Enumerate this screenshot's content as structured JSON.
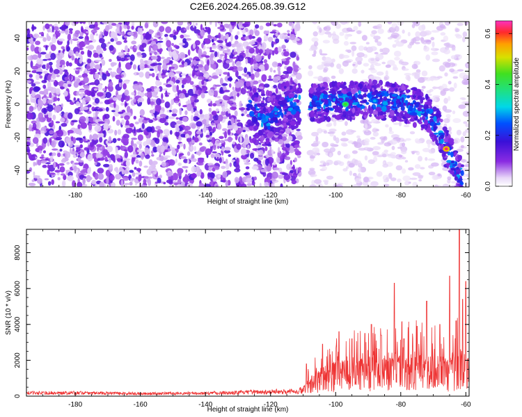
{
  "title": "C2E6.2024.265.08.39.G12",
  "chart_data": [
    {
      "type": "heatmap",
      "xlabel": "Height of straight line (km)",
      "ylabel": "Frequency (Hz)",
      "xlim": [
        -195,
        -59
      ],
      "ylim": [
        -50,
        50
      ],
      "xticks": [
        -180,
        -160,
        -140,
        -120,
        -100,
        -80,
        -60
      ],
      "yticks": [
        -40,
        -20,
        0,
        20,
        40
      ],
      "colorbar": {
        "label": "Normalized spectral amplitude",
        "range": [
          0,
          0.65
        ],
        "ticks": [
          0.0,
          0.2,
          0.4,
          0.6
        ]
      },
      "noise_floor_region": {
        "x_range": [
          -195,
          -111
        ],
        "amplitude": "0.02-0.15"
      },
      "gap_region": {
        "x_range": [
          -111,
          -108
        ]
      },
      "signal_track": [
        {
          "x": -127,
          "y": 0
        },
        {
          "x": -124,
          "y": -7
        },
        {
          "x": -121,
          "y": -12
        },
        {
          "x": -115,
          "y": 0
        },
        {
          "x": -110,
          "y": 0
        },
        {
          "x": -105,
          "y": 1
        },
        {
          "x": -100,
          "y": 2
        },
        {
          "x": -95,
          "y": 2
        },
        {
          "x": -90,
          "y": 3
        },
        {
          "x": -85,
          "y": 2
        },
        {
          "x": -80,
          "y": 1
        },
        {
          "x": -75,
          "y": -2
        },
        {
          "x": -72,
          "y": -6
        },
        {
          "x": -70,
          "y": -10
        },
        {
          "x": -68,
          "y": -17
        },
        {
          "x": -66,
          "y": -27
        },
        {
          "x": -64,
          "y": -35
        },
        {
          "x": -62,
          "y": -42
        },
        {
          "x": -61,
          "y": -46
        }
      ],
      "peaks": [
        {
          "x": -66,
          "y": -27,
          "amplitude": 0.62
        },
        {
          "x": -97,
          "y": 0,
          "amplitude": 0.45
        },
        {
          "x": -88,
          "y": 2,
          "amplitude": 0.3
        }
      ]
    },
    {
      "type": "line",
      "xlabel": "Height of straight line (km)",
      "ylabel": "SNR (10 * v/v)",
      "xlim": [
        -195,
        -59
      ],
      "ylim": [
        0,
        9300
      ],
      "xticks": [
        -180,
        -160,
        -140,
        -120,
        -100,
        -80,
        -60
      ],
      "yticks": [
        0,
        2000,
        4000,
        6000,
        8000
      ],
      "series": [
        {
          "color": "#ee3333",
          "baseline": [
            {
              "x": -195,
              "y": 200
            },
            {
              "x": -180,
              "y": 200
            },
            {
              "x": -160,
              "y": 160
            },
            {
              "x": -140,
              "y": 180
            },
            {
              "x": -125,
              "y": 250
            },
            {
              "x": -115,
              "y": 300
            },
            {
              "x": -111,
              "y": 300
            },
            {
              "x": -108,
              "y": 600
            },
            {
              "x": -105,
              "y": 900
            },
            {
              "x": -100,
              "y": 1100
            },
            {
              "x": -95,
              "y": 1200
            },
            {
              "x": -90,
              "y": 1300
            },
            {
              "x": -85,
              "y": 1300
            },
            {
              "x": -80,
              "y": 1400
            },
            {
              "x": -75,
              "y": 1400
            },
            {
              "x": -70,
              "y": 1300
            },
            {
              "x": -65,
              "y": 1200
            },
            {
              "x": -62,
              "y": 1500
            },
            {
              "x": -59,
              "y": 1200
            }
          ],
          "peaks": [
            {
              "x": -109,
              "y": 1800
            },
            {
              "x": -104,
              "y": 2900
            },
            {
              "x": -99,
              "y": 3600
            },
            {
              "x": -95,
              "y": 3200
            },
            {
              "x": -91,
              "y": 3500
            },
            {
              "x": -89,
              "y": 4000
            },
            {
              "x": -86,
              "y": 3400
            },
            {
              "x": -82,
              "y": 6300
            },
            {
              "x": -79,
              "y": 3200
            },
            {
              "x": -75,
              "y": 3900
            },
            {
              "x": -72,
              "y": 5300
            },
            {
              "x": -68,
              "y": 4000
            },
            {
              "x": -65,
              "y": 6700
            },
            {
              "x": -63,
              "y": 4200
            },
            {
              "x": -62,
              "y": 9300
            },
            {
              "x": -61,
              "y": 5400
            },
            {
              "x": -60,
              "y": 6400
            }
          ]
        }
      ]
    }
  ]
}
